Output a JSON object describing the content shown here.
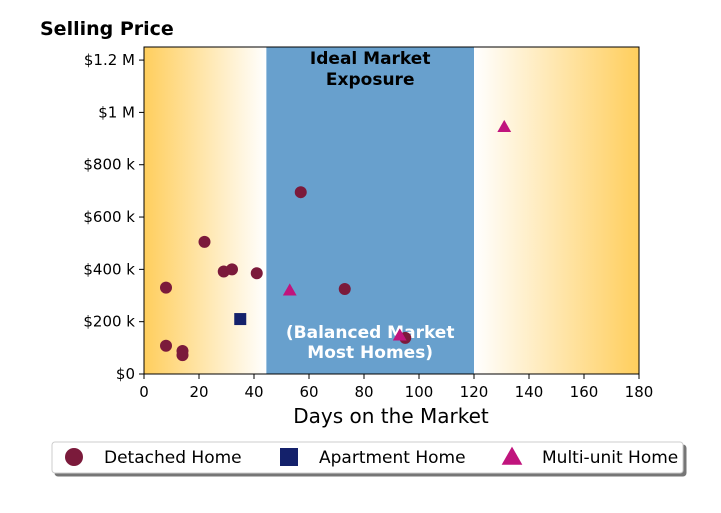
{
  "chart_data": {
    "type": "scatter",
    "title": "Selling Price",
    "xlabel": "Days on the Market",
    "ylabel": "",
    "xlim": [
      0,
      180
    ],
    "ylim": [
      0,
      1250000
    ],
    "x_ticks": [
      0,
      20,
      40,
      60,
      80,
      100,
      120,
      140,
      160,
      180
    ],
    "x_tick_labels": [
      "0",
      "20",
      "40",
      "60",
      "80",
      "100",
      "120",
      "140",
      "160",
      "180"
    ],
    "y_ticks": [
      0,
      200000,
      400000,
      600000,
      800000,
      1000000,
      1200000
    ],
    "y_tick_labels": [
      "$0",
      "$200 k",
      "$400 k",
      "$600 k",
      "$800 k",
      "$1 M",
      "$1.2 M"
    ],
    "grid": false,
    "legend_position": "bottom",
    "band": {
      "x_range": [
        44.5,
        120
      ],
      "color": "#68a0cd",
      "label_top": [
        "Ideal Market",
        "Exposure"
      ],
      "label_bottom": [
        "(Balanced Market",
        "Most Homes)"
      ]
    },
    "background_gradient": {
      "edge_color": "#ffce5d",
      "center_color": "#ffffff"
    },
    "series": [
      {
        "name": "Detached Home",
        "marker": "circle",
        "color": "#7b1a3b",
        "points": [
          {
            "x": 8,
            "y": 330000
          },
          {
            "x": 8,
            "y": 108000
          },
          {
            "x": 14,
            "y": 88000
          },
          {
            "x": 14,
            "y": 72000
          },
          {
            "x": 22,
            "y": 505000
          },
          {
            "x": 29,
            "y": 392000
          },
          {
            "x": 32,
            "y": 400000
          },
          {
            "x": 41,
            "y": 385000
          },
          {
            "x": 57,
            "y": 695000
          },
          {
            "x": 73,
            "y": 325000
          },
          {
            "x": 95,
            "y": 138000
          }
        ]
      },
      {
        "name": "Apartment Home",
        "marker": "square",
        "color": "#14216b",
        "points": [
          {
            "x": 35,
            "y": 210000
          }
        ]
      },
      {
        "name": "Multi-unit Home",
        "marker": "triangle",
        "color": "#c0147d",
        "points": [
          {
            "x": 53,
            "y": 320000
          },
          {
            "x": 93,
            "y": 148000
          },
          {
            "x": 131,
            "y": 945000
          }
        ]
      }
    ]
  }
}
